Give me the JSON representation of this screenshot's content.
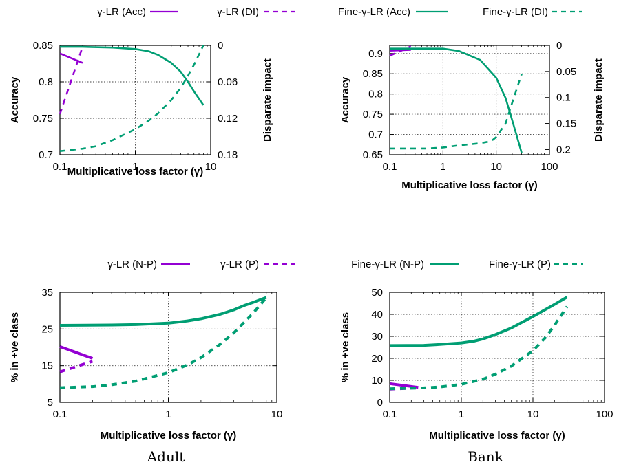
{
  "colors": {
    "purple": "#9400d3",
    "green": "#009e73"
  },
  "legend_top": [
    {
      "label": "γ-LR (Acc)",
      "color": "purple",
      "dash": false,
      "thick": false
    },
    {
      "label": "γ-LR (DI)",
      "color": "purple",
      "dash": true,
      "thick": false
    },
    {
      "label": "Fine-γ-LR (Acc)",
      "color": "green",
      "dash": false,
      "thick": false
    },
    {
      "label": "Fine-γ-LR (DI)",
      "color": "green",
      "dash": true,
      "thick": false
    }
  ],
  "legend_bottom": [
    {
      "label": "γ-LR (N-P)",
      "color": "purple",
      "dash": false,
      "thick": true
    },
    {
      "label": "γ-LR (P)",
      "color": "purple",
      "dash": true,
      "thick": true
    },
    {
      "label": "Fine-γ-LR (N-P)",
      "color": "green",
      "dash": false,
      "thick": true
    },
    {
      "label": "Fine-γ-LR (P)",
      "color": "green",
      "dash": true,
      "thick": true
    }
  ],
  "captions": {
    "left": "Adult",
    "right": "Bank"
  },
  "chart_data": [
    {
      "id": "adult-acc",
      "type": "line",
      "xscale": "log",
      "xlim": [
        0.1,
        10
      ],
      "xticks": [
        0.1,
        1,
        10
      ],
      "xlabel": "Multiplicative loss factor (γ)",
      "ylabel": "Accuracy",
      "ylim": [
        0.7,
        0.85
      ],
      "yticks": [
        0.7,
        0.75,
        0.8,
        0.85
      ],
      "y2label": "Disparate impact",
      "y2lim": [
        0,
        0.18
      ],
      "y2inverted": true,
      "y2ticks": [
        0,
        0.06,
        0.12,
        0.18
      ],
      "grid": true,
      "series": [
        {
          "name": "γ-LR (Acc)",
          "axis": "y",
          "color": "purple",
          "dash": false,
          "x": [
            0.1,
            0.2
          ],
          "y": [
            0.839,
            0.826
          ]
        },
        {
          "name": "γ-LR (DI)",
          "axis": "y2",
          "color": "purple",
          "dash": true,
          "x": [
            0.1,
            0.2
          ],
          "y": [
            0.113,
            0.002
          ]
        },
        {
          "name": "Fine-γ-LR (Acc)",
          "axis": "y",
          "color": "green",
          "dash": false,
          "x": [
            0.1,
            0.2,
            0.5,
            1,
            1.5,
            2,
            3,
            4,
            5,
            6,
            8
          ],
          "y": [
            0.848,
            0.848,
            0.847,
            0.845,
            0.842,
            0.837,
            0.826,
            0.814,
            0.8,
            0.787,
            0.768
          ]
        },
        {
          "name": "Fine-γ-LR (DI)",
          "axis": "y2",
          "color": "green",
          "dash": true,
          "x": [
            0.1,
            0.2,
            0.3,
            0.5,
            1,
            1.5,
            2,
            3,
            4,
            5,
            6,
            8
          ],
          "y": [
            0.174,
            0.17,
            0.166,
            0.156,
            0.138,
            0.124,
            0.112,
            0.09,
            0.07,
            0.05,
            0.032,
            0.0
          ]
        }
      ]
    },
    {
      "id": "bank-acc",
      "type": "line",
      "xscale": "log",
      "xlim": [
        0.1,
        100
      ],
      "xticks": [
        0.1,
        1,
        10,
        100
      ],
      "xlabel": "Multiplicative loss factor (γ)",
      "ylabel": "Accuracy",
      "ylim": [
        0.65,
        0.92
      ],
      "yticks": [
        0.65,
        0.7,
        0.75,
        0.8,
        0.85,
        0.9
      ],
      "y2label": "Disparate impact",
      "y2lim": [
        0,
        0.21
      ],
      "y2inverted": true,
      "y2ticks": [
        0,
        0.05,
        0.1,
        0.15,
        0.2
      ],
      "grid": true,
      "series": [
        {
          "name": "γ-LR (Acc)",
          "axis": "y",
          "color": "purple",
          "dash": false,
          "x": [
            0.1,
            0.25
          ],
          "y": [
            0.907,
            0.909
          ]
        },
        {
          "name": "γ-LR (DI)",
          "axis": "y2",
          "color": "purple",
          "dash": true,
          "x": [
            0.1,
            0.25
          ],
          "y": [
            0.02,
            0.002
          ]
        },
        {
          "name": "Fine-γ-LR (Acc)",
          "axis": "y",
          "color": "green",
          "dash": false,
          "x": [
            0.1,
            0.5,
            1,
            2,
            5,
            10,
            15,
            20,
            30
          ],
          "y": [
            0.912,
            0.912,
            0.912,
            0.906,
            0.884,
            0.84,
            0.79,
            0.735,
            0.655
          ]
        },
        {
          "name": "Fine-γ-LR (DI)",
          "axis": "y2",
          "color": "green",
          "dash": true,
          "x": [
            0.1,
            0.5,
            1,
            2,
            5,
            8,
            10,
            15,
            20,
            30
          ],
          "y": [
            0.198,
            0.198,
            0.196,
            0.192,
            0.188,
            0.184,
            0.176,
            0.15,
            0.11,
            0.055
          ]
        }
      ]
    },
    {
      "id": "adult-pos",
      "type": "line",
      "xscale": "log",
      "xlim": [
        0.1,
        10
      ],
      "xticks": [
        0.1,
        1,
        10
      ],
      "xlabel": "Multiplicative loss factor (γ)",
      "ylabel": "% in +ve class",
      "ylim": [
        5,
        35
      ],
      "yticks": [
        5,
        15,
        25,
        35
      ],
      "grid": true,
      "series": [
        {
          "name": "γ-LR (N-P)",
          "axis": "y",
          "color": "purple",
          "dash": false,
          "x": [
            0.1,
            0.2
          ],
          "y": [
            20.2,
            17
          ]
        },
        {
          "name": "γ-LR (P)",
          "axis": "y",
          "color": "purple",
          "dash": true,
          "x": [
            0.1,
            0.2
          ],
          "y": [
            13.3,
            16.2
          ]
        },
        {
          "name": "Fine-γ-LR (N-P)",
          "axis": "y",
          "color": "green",
          "dash": false,
          "x": [
            0.1,
            0.3,
            0.5,
            1,
            1.5,
            2,
            3,
            4,
            5,
            6,
            8
          ],
          "y": [
            26,
            26.1,
            26.2,
            26.6,
            27.2,
            27.8,
            29,
            30.2,
            31.4,
            32.2,
            33.6
          ]
        },
        {
          "name": "Fine-γ-LR (P)",
          "axis": "y",
          "color": "green",
          "dash": true,
          "x": [
            0.1,
            0.2,
            0.3,
            0.5,
            1,
            1.5,
            2,
            3,
            4,
            5,
            6,
            8
          ],
          "y": [
            9,
            9.3,
            9.8,
            10.8,
            13.1,
            15.2,
            17.2,
            20.8,
            23.9,
            26.8,
            29.2,
            33.5
          ]
        }
      ]
    },
    {
      "id": "bank-pos",
      "type": "line",
      "xscale": "log",
      "xlim": [
        0.1,
        100
      ],
      "xticks": [
        0.1,
        1,
        10,
        100
      ],
      "xlabel": "Multiplicative loss factor (γ)",
      "ylabel": "% in +ve class",
      "ylim": [
        0,
        50
      ],
      "yticks": [
        0,
        10,
        20,
        30,
        40,
        50
      ],
      "grid": true,
      "series": [
        {
          "name": "γ-LR (N-P)",
          "axis": "y",
          "color": "purple",
          "dash": false,
          "x": [
            0.1,
            0.25
          ],
          "y": [
            8.5,
            6.8
          ]
        },
        {
          "name": "γ-LR (P)",
          "axis": "y",
          "color": "purple",
          "dash": true,
          "x": [
            0.1,
            0.25
          ],
          "y": [
            6.0,
            6.6
          ]
        },
        {
          "name": "Fine-γ-LR (N-P)",
          "axis": "y",
          "color": "green",
          "dash": false,
          "x": [
            0.1,
            0.3,
            0.5,
            1,
            1.5,
            2,
            3,
            5,
            10,
            20,
            30
          ],
          "y": [
            25.8,
            25.9,
            26.3,
            27,
            27.8,
            28.8,
            30.8,
            33.8,
            39,
            44.5,
            47.8
          ]
        },
        {
          "name": "Fine-γ-LR (P)",
          "axis": "y",
          "color": "green",
          "dash": true,
          "x": [
            0.1,
            0.3,
            0.5,
            1,
            2,
            3,
            5,
            10,
            15,
            20,
            30
          ],
          "y": [
            6.2,
            6.6,
            7,
            8.2,
            10.5,
            12.8,
            16.5,
            23.5,
            29.5,
            35,
            43.5
          ]
        }
      ]
    }
  ]
}
